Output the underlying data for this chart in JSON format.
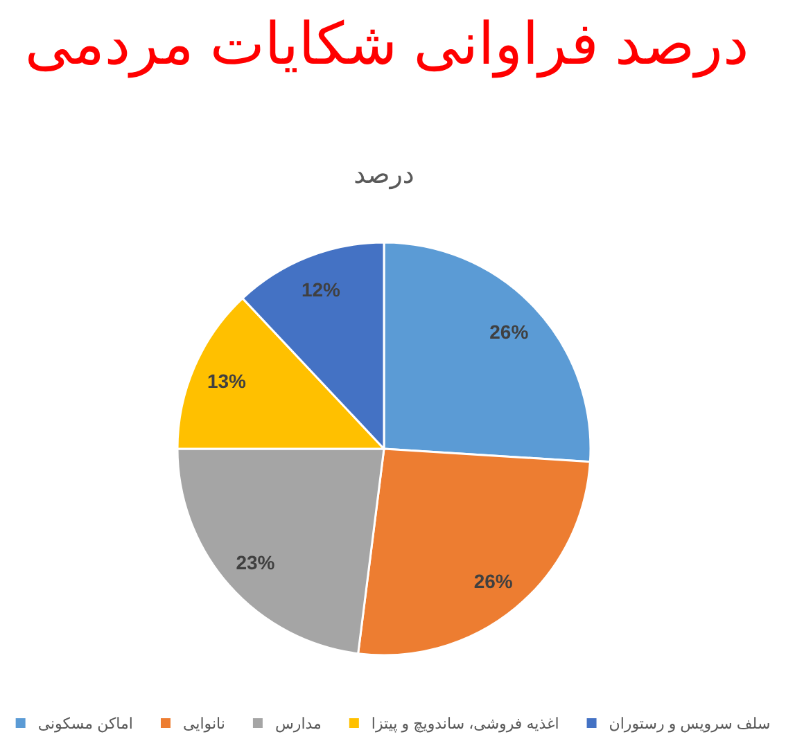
{
  "chart_data": {
    "type": "pie",
    "title": "درصد فراوانی شکایات مردمی",
    "subtitle": "درصد",
    "categories": [
      "اماکن مسکونی",
      "نانوایی",
      "مدارس",
      "اغذیه فروشی، ساندویچ و پیتزا",
      "سلف سرویس و رستوران"
    ],
    "values": [
      26,
      26,
      23,
      13,
      12
    ],
    "value_labels": [
      "26%",
      "26%",
      "23%",
      "13%",
      "12%"
    ],
    "colors": [
      "#5b9bd5",
      "#ed7d31",
      "#a5a5a5",
      "#ffc000",
      "#4472c4"
    ],
    "legend": "bottom"
  }
}
